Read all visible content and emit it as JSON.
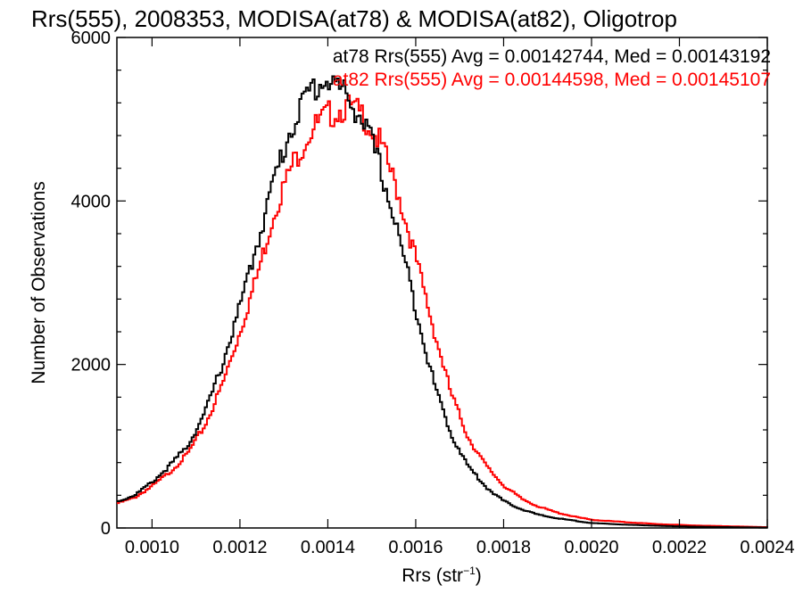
{
  "chart_data": {
    "type": "histogram",
    "title": "Rrs(555), 2008353, MODISA(at78) & MODISA(at82), Oligotrop",
    "xlabel": "Rrs (str",
    "xlabel_exponent": "−1",
    "xlabel_close": ")",
    "ylabel": "Number of Observations",
    "xlim": [
      0.00092,
      0.0024
    ],
    "ylim": [
      0,
      6000
    ],
    "x_ticks": [
      0.001,
      0.0012,
      0.0014,
      0.0016,
      0.0018,
      0.002,
      0.0022,
      0.0024
    ],
    "x_tick_labels": [
      "0.0010",
      "0.0012",
      "0.0014",
      "0.0016",
      "0.0018",
      "0.0020",
      "0.0022",
      "0.0024"
    ],
    "y_ticks": [
      0,
      2000,
      4000,
      6000
    ],
    "y_tick_labels": [
      "0",
      "2000",
      "4000",
      "6000"
    ],
    "annotations": [
      {
        "text": "at78 Rrs(555) Avg = 0.00142744, Med = 0.00143192",
        "color": "#000000"
      },
      {
        "text": "at82 Rrs(555) Avg = 0.00144598, Med = 0.00145107",
        "color": "#ff0000"
      }
    ],
    "series": [
      {
        "key": "at78",
        "color": "#000000",
        "points": [
          [
            0.00092,
            320
          ],
          [
            0.00096,
            400
          ],
          [
            0.001,
            560
          ],
          [
            0.00104,
            760
          ],
          [
            0.00108,
            1000
          ],
          [
            0.00112,
            1400
          ],
          [
            0.00116,
            2000
          ],
          [
            0.0012,
            2700
          ],
          [
            0.00124,
            3500
          ],
          [
            0.00128,
            4300
          ],
          [
            0.00132,
            4950
          ],
          [
            0.00136,
            5350
          ],
          [
            0.0014,
            5500
          ],
          [
            0.00144,
            5300
          ],
          [
            0.00148,
            5000
          ],
          [
            0.00152,
            4400
          ],
          [
            0.00156,
            3600
          ],
          [
            0.0016,
            2700
          ],
          [
            0.00164,
            1800
          ],
          [
            0.00168,
            1150
          ],
          [
            0.00172,
            750
          ],
          [
            0.00176,
            500
          ],
          [
            0.0018,
            330
          ],
          [
            0.00184,
            230
          ],
          [
            0.00188,
            160
          ],
          [
            0.00192,
            120
          ],
          [
            0.00196,
            90
          ],
          [
            0.002,
            60
          ],
          [
            0.00208,
            40
          ],
          [
            0.00216,
            25
          ],
          [
            0.00224,
            15
          ],
          [
            0.0024,
            5
          ]
        ]
      },
      {
        "key": "at82",
        "color": "#ff0000",
        "points": [
          [
            0.00092,
            300
          ],
          [
            0.00096,
            370
          ],
          [
            0.001,
            510
          ],
          [
            0.00104,
            680
          ],
          [
            0.00108,
            900
          ],
          [
            0.00112,
            1250
          ],
          [
            0.00116,
            1750
          ],
          [
            0.0012,
            2400
          ],
          [
            0.00124,
            3100
          ],
          [
            0.00128,
            3900
          ],
          [
            0.00132,
            4450
          ],
          [
            0.00136,
            4850
          ],
          [
            0.0014,
            5050
          ],
          [
            0.00144,
            5150
          ],
          [
            0.00148,
            5050
          ],
          [
            0.00152,
            4700
          ],
          [
            0.00156,
            4100
          ],
          [
            0.0016,
            3300
          ],
          [
            0.00164,
            2450
          ],
          [
            0.00168,
            1650
          ],
          [
            0.00172,
            1100
          ],
          [
            0.00176,
            760
          ],
          [
            0.0018,
            520
          ],
          [
            0.00184,
            360
          ],
          [
            0.00188,
            260
          ],
          [
            0.00192,
            190
          ],
          [
            0.00196,
            140
          ],
          [
            0.002,
            100
          ],
          [
            0.00208,
            70
          ],
          [
            0.00216,
            45
          ],
          [
            0.00224,
            30
          ],
          [
            0.0024,
            10
          ]
        ]
      }
    ]
  }
}
